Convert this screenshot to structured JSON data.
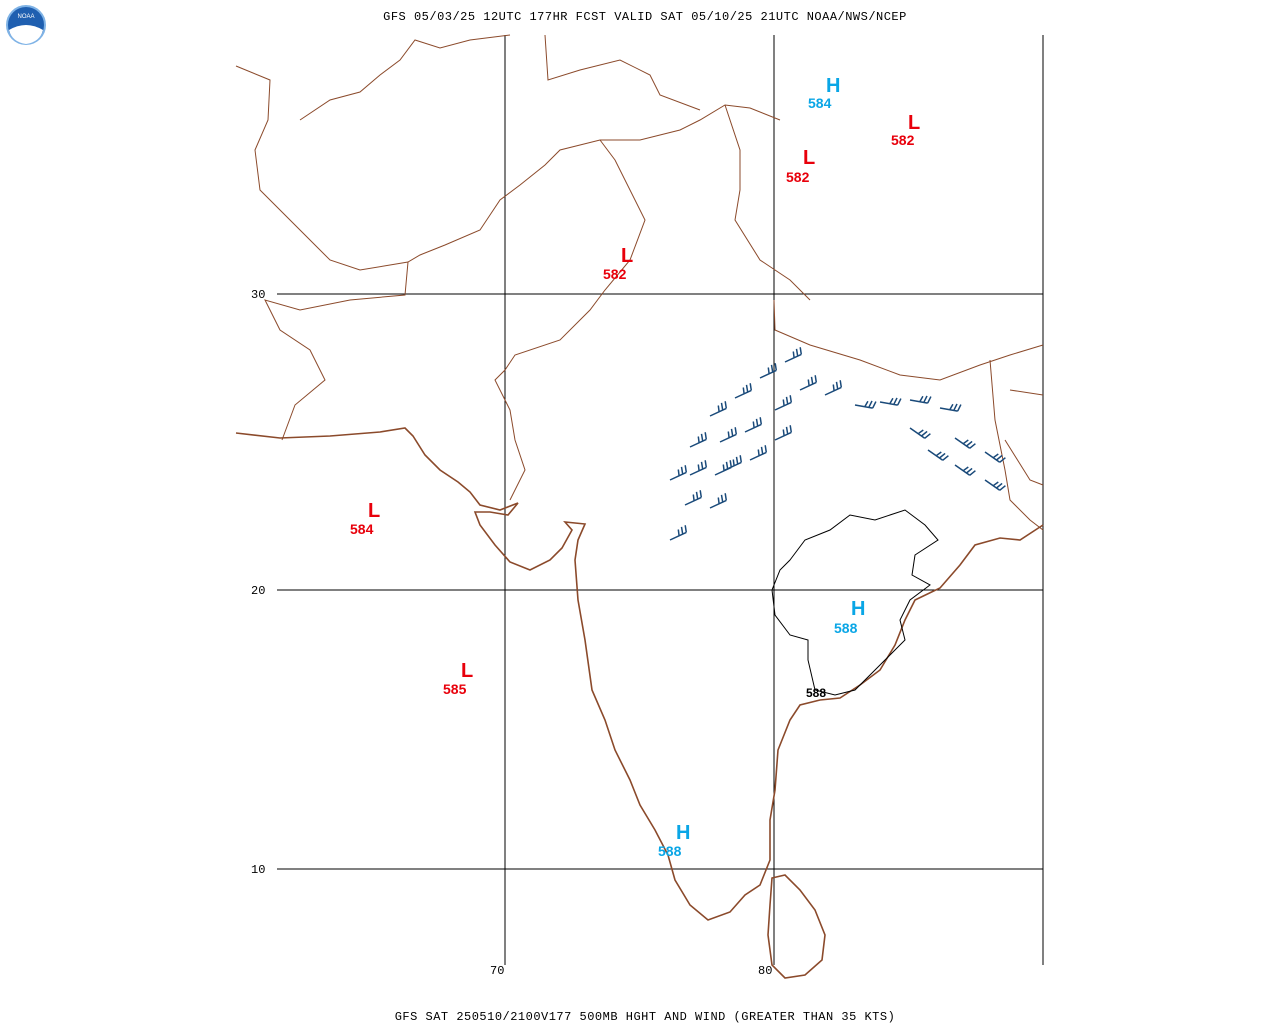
{
  "header": {
    "title": "GFS 05/03/25 12UTC 177HR FCST VALID SAT 05/10/25 21UTC NOAA/NWS/NCEP",
    "logo": "NOAA"
  },
  "footer": {
    "caption": "GFS SAT 250510/2100V177 500MB HGHT AND WIND (GREATER THAN 35 KTS)"
  },
  "grid": {
    "lat_labels": [
      "30",
      "20",
      "10"
    ],
    "lon_labels": [
      "70",
      "80"
    ]
  },
  "centers": [
    {
      "symbol": "H",
      "value": "584"
    },
    {
      "symbol": "L",
      "value": "582"
    },
    {
      "symbol": "L",
      "value": "582"
    },
    {
      "symbol": "L",
      "value": "582"
    },
    {
      "symbol": "L",
      "value": "584"
    },
    {
      "symbol": "L",
      "value": "585"
    },
    {
      "symbol": "H",
      "value": "588"
    },
    {
      "symbol": "H",
      "value": "588"
    }
  ],
  "contour_labels": [
    "588"
  ]
}
